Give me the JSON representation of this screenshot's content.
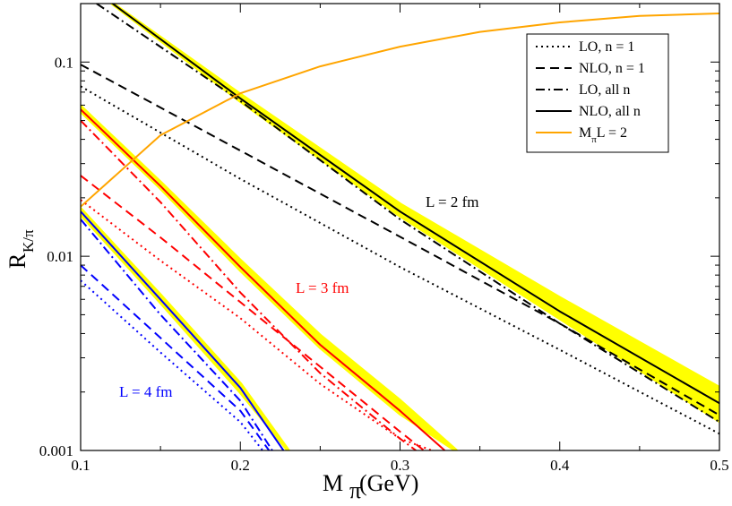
{
  "chart_data": {
    "type": "line",
    "xlabel": "M_π (GeV)",
    "ylabel": "R_K/π",
    "xlim": [
      0.1,
      0.5
    ],
    "ylim": [
      0.001,
      0.2
    ],
    "yscale": "log",
    "grid": false,
    "legend_position": "top-right",
    "x_ticks": [
      "0.1",
      "0.2",
      "0.3",
      "0.4",
      "0.5"
    ],
    "y_ticks": [
      "0.001",
      "0.01",
      "0.1"
    ],
    "annotations": [
      {
        "text": "L = 2 fm",
        "color": "#000000"
      },
      {
        "text": "L = 3 fm",
        "color": "#ff0000"
      },
      {
        "text": "L = 4 fm",
        "color": "#0000ff"
      }
    ],
    "legend": [
      {
        "label": "LO, n = 1",
        "style": "dotted",
        "color": "#000000"
      },
      {
        "label": "NLO, n = 1",
        "style": "dashed",
        "color": "#000000"
      },
      {
        "label": "LO, all n",
        "style": "dashdot",
        "color": "#000000"
      },
      {
        "label": "NLO, all n",
        "style": "solid",
        "color": "#000000"
      },
      {
        "label": "M_πL = 2",
        "style": "solid",
        "color": "#ffa500"
      }
    ],
    "series": [
      {
        "L_fm": 2,
        "style": "dotted",
        "color": "#000000",
        "x": [
          0.1,
          0.2,
          0.3,
          0.4,
          0.5
        ],
        "y": [
          0.075,
          0.025,
          0.0088,
          0.0033,
          0.00122
        ]
      },
      {
        "L_fm": 2,
        "style": "dashed",
        "color": "#000000",
        "x": [
          0.1,
          0.2,
          0.3,
          0.4,
          0.5
        ],
        "y": [
          0.097,
          0.035,
          0.0126,
          0.0045,
          0.00152
        ]
      },
      {
        "L_fm": 2,
        "style": "dashdot",
        "color": "#000000",
        "x": [
          0.11,
          0.2,
          0.3,
          0.4,
          0.5
        ],
        "y": [
          0.2,
          0.063,
          0.0155,
          0.0045,
          0.0014
        ]
      },
      {
        "L_fm": 2,
        "style": "solid",
        "color": "#000000",
        "x": [
          0.12,
          0.2,
          0.3,
          0.4,
          0.5
        ],
        "y": [
          0.2,
          0.065,
          0.017,
          0.0052,
          0.00175
        ]
      },
      {
        "L_fm": 3,
        "style": "dotted",
        "color": "#ff0000",
        "x": [
          0.1,
          0.15,
          0.2,
          0.25,
          0.3,
          0.32
        ],
        "y": [
          0.0195,
          0.0095,
          0.0048,
          0.0022,
          0.00115,
          0.001
        ]
      },
      {
        "L_fm": 3,
        "style": "dashed",
        "color": "#ff0000",
        "x": [
          0.1,
          0.15,
          0.2,
          0.25,
          0.3,
          0.315
        ],
        "y": [
          0.026,
          0.0125,
          0.0058,
          0.0027,
          0.00125,
          0.001
        ]
      },
      {
        "L_fm": 3,
        "style": "dashdot",
        "color": "#ff0000",
        "x": [
          0.1,
          0.15,
          0.2,
          0.25,
          0.3,
          0.31
        ],
        "y": [
          0.05,
          0.019,
          0.0065,
          0.0025,
          0.00115,
          0.001
        ]
      },
      {
        "L_fm": 3,
        "style": "solid",
        "color": "#ff0000",
        "x": [
          0.1,
          0.15,
          0.2,
          0.25,
          0.3,
          0.328
        ],
        "y": [
          0.057,
          0.023,
          0.0088,
          0.0035,
          0.0016,
          0.001
        ]
      },
      {
        "L_fm": 4,
        "style": "dotted",
        "color": "#0000ff",
        "x": [
          0.1,
          0.15,
          0.2,
          0.214
        ],
        "y": [
          0.0075,
          0.0032,
          0.0014,
          0.001
        ]
      },
      {
        "L_fm": 4,
        "style": "dashed",
        "color": "#0000ff",
        "x": [
          0.1,
          0.15,
          0.2,
          0.218
        ],
        "y": [
          0.009,
          0.0038,
          0.0016,
          0.001
        ]
      },
      {
        "L_fm": 4,
        "style": "dashdot",
        "color": "#0000ff",
        "x": [
          0.1,
          0.15,
          0.2,
          0.22
        ],
        "y": [
          0.0155,
          0.005,
          0.0018,
          0.001
        ]
      },
      {
        "L_fm": 4,
        "style": "solid",
        "color": "#0000ff",
        "x": [
          0.1,
          0.15,
          0.2,
          0.227
        ],
        "y": [
          0.017,
          0.006,
          0.0021,
          0.001
        ]
      },
      {
        "label": "M_πL = 2",
        "style": "solid",
        "color": "#ffa500",
        "x": [
          0.1,
          0.15,
          0.2,
          0.25,
          0.3,
          0.35,
          0.4,
          0.45,
          0.5
        ],
        "y": [
          0.018,
          0.042,
          0.069,
          0.095,
          0.12,
          0.143,
          0.16,
          0.173,
          0.178
        ]
      }
    ],
    "error_bands": [
      {
        "L_fm": 2,
        "color": "#ffff00",
        "x": [
          0.12,
          0.2,
          0.3,
          0.4,
          0.5
        ],
        "y_low": [
          0.2,
          0.063,
          0.0162,
          0.0048,
          0.00142
        ],
        "y_high": [
          0.2,
          0.068,
          0.0185,
          0.0061,
          0.0021
        ]
      },
      {
        "L_fm": 3,
        "color": "#ffff00",
        "x": [
          0.1,
          0.15,
          0.2,
          0.25,
          0.3,
          0.335
        ],
        "y_low": [
          0.056,
          0.0225,
          0.0085,
          0.0034,
          0.00155,
          0.001
        ],
        "y_high": [
          0.059,
          0.024,
          0.0095,
          0.0039,
          0.0018,
          0.001
        ]
      },
      {
        "L_fm": 4,
        "color": "#ffff00",
        "x": [
          0.1,
          0.15,
          0.2,
          0.23
        ],
        "y_low": [
          0.0165,
          0.0058,
          0.002,
          0.001
        ],
        "y_high": [
          0.0175,
          0.0063,
          0.0022,
          0.001
        ]
      }
    ]
  }
}
